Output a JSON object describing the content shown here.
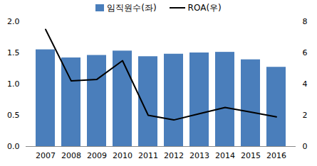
{
  "chart_data": {
    "type": "bar",
    "categories": [
      "2007",
      "2008",
      "2009",
      "2010",
      "2011",
      "2012",
      "2013",
      "2014",
      "2015",
      "2016"
    ],
    "series": [
      {
        "name": "임직원수(좌)",
        "type": "bar",
        "color": "#4a7ebb",
        "values": [
          1.55,
          1.42,
          1.46,
          1.53,
          1.44,
          1.48,
          1.5,
          1.51,
          1.39,
          1.27
        ]
      },
      {
        "name": "ROA(우)",
        "type": "line",
        "color": "#000000",
        "axis": "y2",
        "values": [
          7.5,
          4.2,
          4.3,
          5.5,
          2.0,
          1.7,
          2.1,
          2.5,
          2.2,
          1.9
        ]
      }
    ],
    "ylim": [
      0,
      2
    ],
    "yticks": [
      {
        "value": 0,
        "label": "0.0"
      },
      {
        "value": 0.5,
        "label": "0.5"
      },
      {
        "value": 1,
        "label": "1.0"
      },
      {
        "value": 1.5,
        "label": "1.5"
      },
      {
        "value": 2,
        "label": "2.0"
      }
    ],
    "y2lim": [
      0,
      8
    ],
    "y2ticks": [
      0,
      2,
      4,
      6,
      8
    ],
    "legend": "top"
  }
}
